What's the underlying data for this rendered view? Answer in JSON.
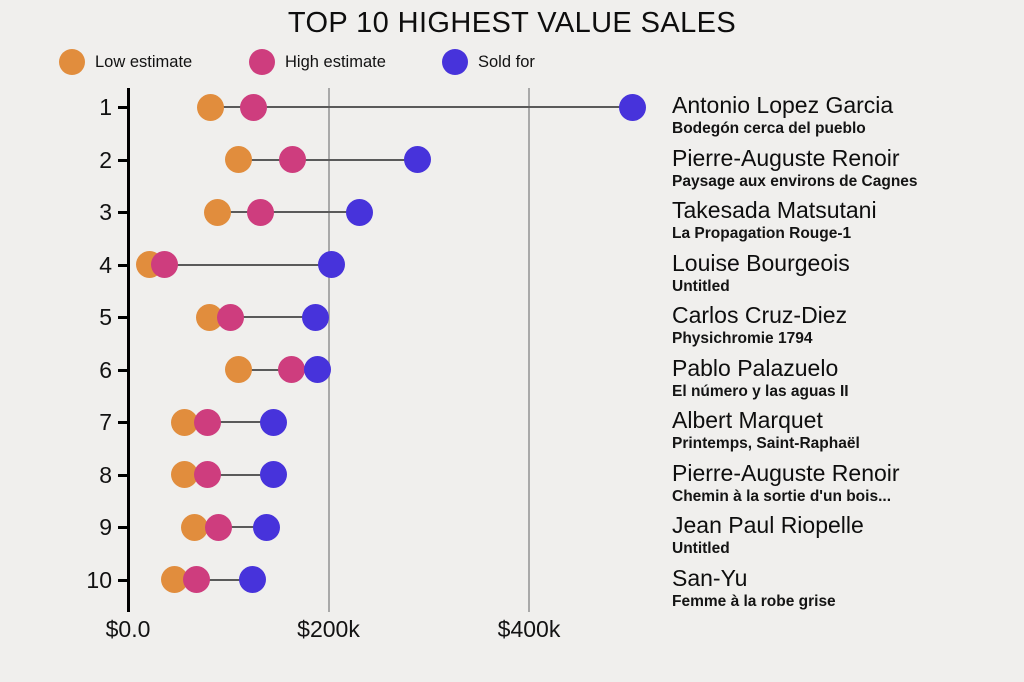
{
  "title": "TOP 10 HIGHEST VALUE SALES",
  "colors": {
    "low": "#E18D3D",
    "high": "#CE3D7E",
    "sold": "#4733DB",
    "background": "#F0EFED",
    "gridline": "#A9A9A9",
    "connector": "#5A5A5A",
    "axis": "#000000"
  },
  "legend": [
    {
      "key": "low",
      "label": "Low estimate"
    },
    {
      "key": "high",
      "label": "High estimate"
    },
    {
      "key": "sold",
      "label": "Sold for"
    }
  ],
  "chart_data": {
    "type": "dumbbell_dot_plot",
    "title": "TOP 10 HIGHEST VALUE SALES",
    "x_unit": "USD (thousands)",
    "x_range": [
      0,
      530
    ],
    "grid": "vertical-only",
    "legend_position": "top-left",
    "x_ticks": [
      {
        "label": "$0.0",
        "value": 0
      },
      {
        "label": "$200k",
        "value": 200
      },
      {
        "label": "$400k",
        "value": 400
      }
    ],
    "series_keys": [
      "low",
      "high",
      "sold"
    ],
    "rows": [
      {
        "rank": "1",
        "artist": "Antonio Lopez Garcia",
        "work": "Bodegón cerca del pueblo",
        "low": 82,
        "high": 125,
        "sold": 503
      },
      {
        "rank": "2",
        "artist": "Pierre-Auguste Renoir",
        "work": "Paysage aux environs de Cagnes",
        "low": 110,
        "high": 164,
        "sold": 289
      },
      {
        "rank": "3",
        "artist": "Takesada Matsutani",
        "work": "La Propagation Rouge-1",
        "low": 89,
        "high": 132,
        "sold": 231
      },
      {
        "rank": "4",
        "artist": "Louise Bourgeois",
        "work": "Untitled",
        "low": 21,
        "high": 36,
        "sold": 203
      },
      {
        "rank": "5",
        "artist": "Carlos Cruz-Diez",
        "work": "Physichromie 1794",
        "low": 81,
        "high": 102,
        "sold": 187
      },
      {
        "rank": "6",
        "artist": "Pablo Palazuelo",
        "work": "El número y las aguas II",
        "low": 110,
        "high": 163,
        "sold": 189
      },
      {
        "rank": "7",
        "artist": "Albert Marquet",
        "work": "Printemps, Saint-Raphaël",
        "low": 56,
        "high": 79,
        "sold": 145
      },
      {
        "rank": "8",
        "artist": "Pierre-Auguste Renoir",
        "work": "Chemin à la sortie d'un bois...",
        "low": 56,
        "high": 79,
        "sold": 145
      },
      {
        "rank": "9",
        "artist": "Jean Paul Riopelle",
        "work": "Untitled",
        "low": 66,
        "high": 90,
        "sold": 138
      },
      {
        "rank": "10",
        "artist": "San-Yu",
        "work": "Femme à la robe grise",
        "low": 46,
        "high": 68,
        "sold": 124
      }
    ]
  }
}
